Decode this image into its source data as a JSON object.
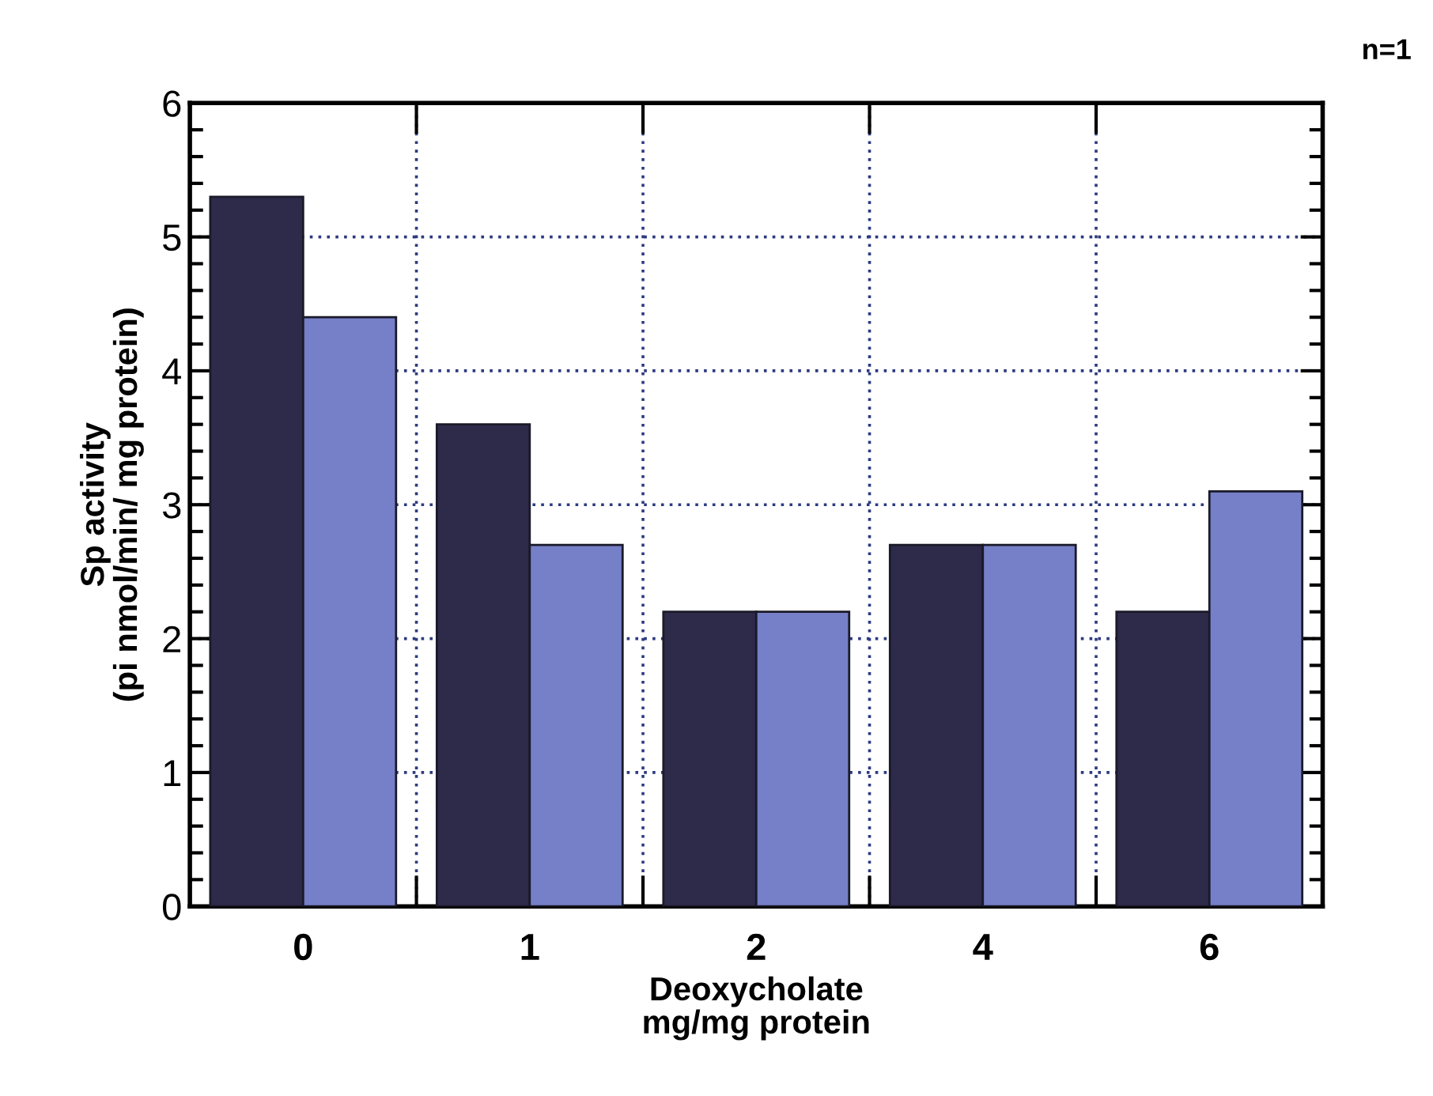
{
  "chart_data": {
    "type": "bar",
    "xlabel": "Deoxycholate\nmg/mg protein",
    "ylabel": "Sp activity\n(pi nmol/min/ mg protein)",
    "annotations": [
      "n=1"
    ],
    "categories": [
      "0",
      "1",
      "2",
      "4",
      "6"
    ],
    "series": [
      {
        "color": "#2e2a4a",
        "values": [
          5.3,
          3.6,
          2.2,
          2.7,
          2.2
        ]
      },
      {
        "color": "#7680c8",
        "values": [
          4.4,
          2.7,
          2.2,
          2.7,
          3.1
        ]
      }
    ],
    "ylim": [
      0,
      6
    ],
    "yticks": [
      0,
      1,
      2,
      3,
      4,
      5,
      6
    ],
    "grid": true,
    "legend": false
  }
}
